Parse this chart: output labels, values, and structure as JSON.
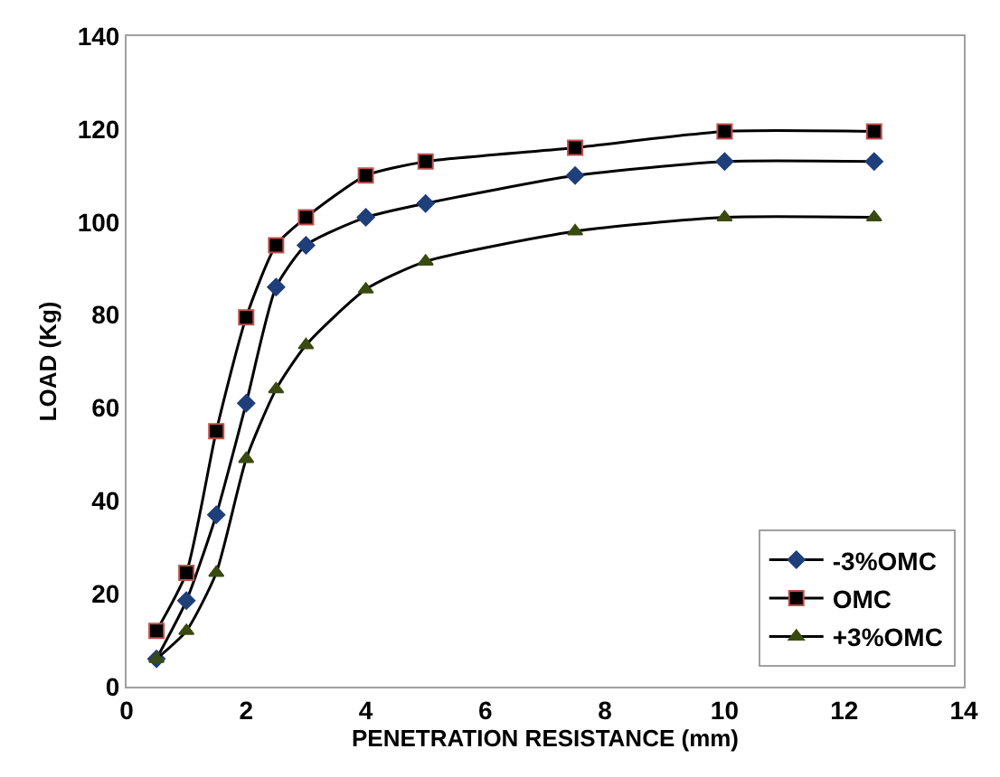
{
  "chart_data": {
    "type": "line",
    "xlabel": "PENETRATION RESISTANCE (mm)",
    "ylabel": "LOAD (Kg)",
    "x": [
      0.5,
      1,
      1.5,
      2,
      2.5,
      3,
      4,
      5,
      7.5,
      10,
      12.5
    ],
    "series": [
      {
        "name": "-3%OMC",
        "color": "#1f3f7a",
        "marker": "diamond",
        "values": [
          6,
          18.5,
          37,
          61,
          86,
          95,
          101,
          104,
          110,
          113,
          113
        ]
      },
      {
        "name": "OMC",
        "color": "#000000",
        "marker": "square",
        "values": [
          12,
          24.5,
          55,
          79.5,
          95,
          101,
          110,
          113,
          116,
          119.5,
          119.5
        ]
      },
      {
        "name": "+3%OMC",
        "color": "#3a4a10",
        "marker": "triangle",
        "values": [
          6,
          12,
          24.5,
          49,
          64,
          73.5,
          85.5,
          91.5,
          98,
          101,
          101
        ]
      }
    ],
    "xlim": [
      0,
      14
    ],
    "xticks": [
      0,
      2,
      4,
      6,
      8,
      10,
      12,
      14
    ],
    "ylim": [
      0,
      140
    ],
    "yticks": [
      0,
      20,
      40,
      60,
      80,
      100,
      120,
      140
    ],
    "legend": "bottom right",
    "line_style": "solid"
  }
}
